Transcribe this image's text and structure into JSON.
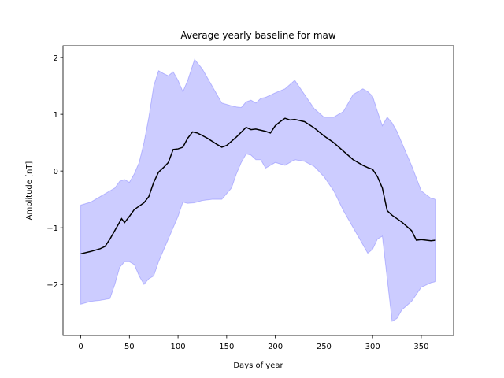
{
  "chart_data": {
    "type": "line",
    "title": "Average yearly baseline for maw",
    "xlabel": "Days of year",
    "ylabel": "Amplitude [nT]",
    "xlim": [
      -18.25,
      383.25
    ],
    "ylim": [
      -2.9,
      2.21
    ],
    "xticks": [
      0,
      50,
      100,
      150,
      200,
      250,
      300,
      350
    ],
    "yticks": [
      {
        "value": -2,
        "label": "−2"
      },
      {
        "value": -1,
        "label": "−1"
      },
      0,
      1,
      2
    ],
    "line": {
      "color": "#000000",
      "x": [
        0,
        10,
        20,
        25,
        30,
        35,
        42,
        45,
        50,
        55,
        60,
        65,
        70,
        75,
        80,
        85,
        90,
        95,
        100,
        105,
        110,
        115,
        120,
        130,
        140,
        145,
        150,
        160,
        170,
        175,
        180,
        190,
        195,
        200,
        205,
        210,
        215,
        220,
        230,
        240,
        250,
        260,
        270,
        280,
        290,
        295,
        300,
        305,
        310,
        315,
        320,
        330,
        340,
        345,
        350,
        360,
        365
      ],
      "values": [
        -1.46,
        -1.42,
        -1.37,
        -1.33,
        -1.2,
        -1.05,
        -0.84,
        -0.91,
        -0.8,
        -0.68,
        -0.62,
        -0.56,
        -0.45,
        -0.2,
        -0.02,
        0.06,
        0.15,
        0.38,
        0.39,
        0.42,
        0.58,
        0.69,
        0.67,
        0.58,
        0.47,
        0.42,
        0.45,
        0.6,
        0.77,
        0.73,
        0.74,
        0.7,
        0.67,
        0.8,
        0.87,
        0.93,
        0.9,
        0.91,
        0.87,
        0.76,
        0.62,
        0.5,
        0.35,
        0.2,
        0.1,
        0.06,
        0.03,
        -0.1,
        -0.3,
        -0.7,
        -0.78,
        -0.9,
        -1.05,
        -1.22,
        -1.21,
        -1.23,
        -1.22
      ]
    },
    "band": {
      "color": "#0000ff",
      "x": [
        0,
        10,
        20,
        30,
        35,
        40,
        45,
        50,
        55,
        60,
        65,
        70,
        75,
        80,
        85,
        90,
        95,
        100,
        105,
        110,
        117,
        125,
        135,
        145,
        155,
        160,
        165,
        170,
        175,
        180,
        185,
        190,
        200,
        210,
        220,
        230,
        240,
        250,
        260,
        270,
        280,
        290,
        295,
        300,
        305,
        310,
        315,
        320,
        325,
        330,
        340,
        350,
        360,
        365
      ],
      "upper": [
        -0.6,
        -0.55,
        -0.45,
        -0.35,
        -0.3,
        -0.18,
        -0.15,
        -0.2,
        -0.05,
        0.15,
        0.5,
        0.95,
        1.5,
        1.77,
        1.72,
        1.68,
        1.75,
        1.6,
        1.4,
        1.6,
        1.97,
        1.8,
        1.5,
        1.2,
        1.15,
        1.13,
        1.12,
        1.22,
        1.25,
        1.2,
        1.28,
        1.3,
        1.38,
        1.45,
        1.6,
        1.35,
        1.1,
        0.95,
        0.95,
        1.05,
        1.35,
        1.45,
        1.4,
        1.32,
        1.05,
        0.8,
        0.95,
        0.85,
        0.7,
        0.5,
        0.1,
        -0.35,
        -0.48,
        -0.5
      ],
      "lower": [
        -2.35,
        -2.3,
        -2.28,
        -2.25,
        -2.0,
        -1.7,
        -1.6,
        -1.6,
        -1.65,
        -1.85,
        -2.0,
        -1.9,
        -1.85,
        -1.6,
        -1.4,
        -1.2,
        -1.0,
        -0.8,
        -0.55,
        -0.57,
        -0.56,
        -0.52,
        -0.5,
        -0.5,
        -0.3,
        -0.05,
        0.15,
        0.3,
        0.28,
        0.2,
        0.2,
        0.05,
        0.15,
        0.1,
        0.2,
        0.17,
        0.08,
        -0.1,
        -0.35,
        -0.7,
        -1.0,
        -1.3,
        -1.45,
        -1.38,
        -1.2,
        -1.15,
        -1.9,
        -2.65,
        -2.6,
        -2.45,
        -2.3,
        -2.05,
        -1.97,
        -1.95
      ]
    }
  }
}
